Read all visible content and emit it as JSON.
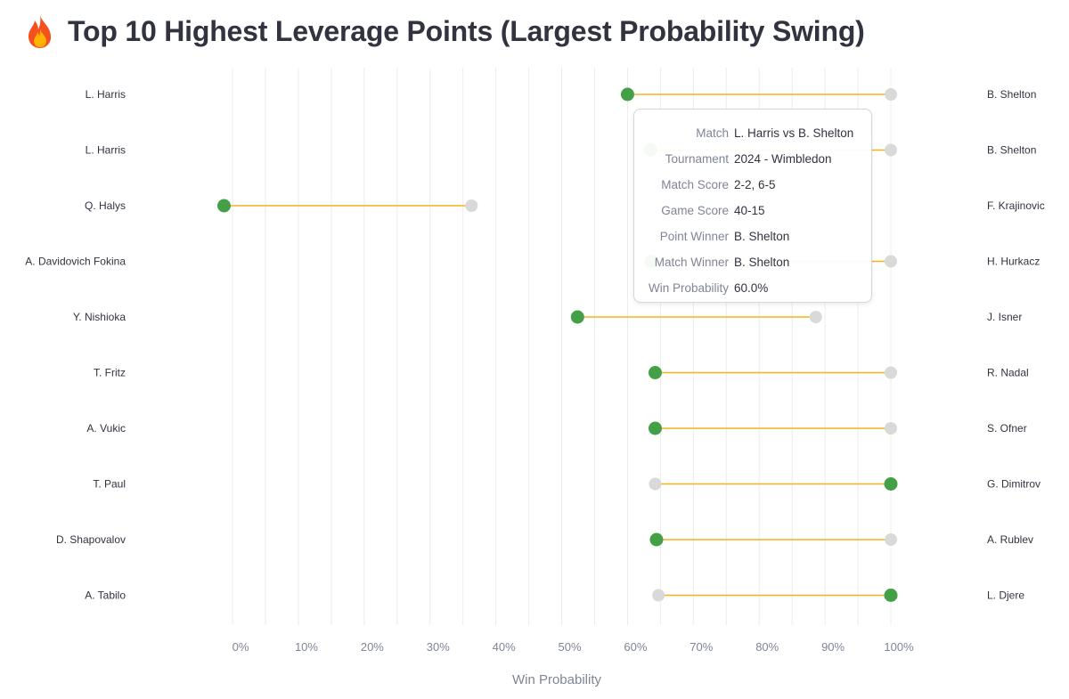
{
  "page": {
    "title": "Top 10 Highest Leverage Points (Largest Probability Swing)",
    "icon": "fire-icon"
  },
  "chart_data": {
    "type": "dumbbell",
    "title": "Top 10 Highest Leverage Points (Largest Probability Swing)",
    "xlabel": "Win Probability",
    "ylabel": "",
    "xlim": [
      -0.015,
      1.0
    ],
    "x_ticks": [
      0,
      0.1,
      0.2,
      0.3,
      0.4,
      0.5,
      0.6,
      0.7,
      0.8,
      0.9,
      1.0
    ],
    "x_tick_labels": [
      "0%",
      "10%",
      "20%",
      "30%",
      "40%",
      "50%",
      "60%",
      "70%",
      "80%",
      "90%",
      "100%"
    ],
    "grid": true,
    "colors": {
      "winner": "#43a047",
      "other": "#d9d9d9",
      "connector": "#f5b31b"
    },
    "rows": [
      {
        "left": "L. Harris",
        "right": "B. Shelton",
        "winner_prob": 0.6,
        "other_prob": 1.0
      },
      {
        "left": "L. Harris",
        "right": "B. Shelton",
        "winner_prob": 0.635,
        "other_prob": 1.0
      },
      {
        "left": "Q. Halys",
        "right": "F. Krajinovic",
        "winner_prob": -0.013,
        "other_prob": 0.363
      },
      {
        "left": "A. Davidovich Fokina",
        "right": "H. Hurkacz",
        "winner_prob": 0.636,
        "other_prob": 1.0
      },
      {
        "left": "Y. Nishioka",
        "right": "J. Isner",
        "winner_prob": 0.524,
        "other_prob": 0.886
      },
      {
        "left": "T. Fritz",
        "right": "R. Nadal",
        "winner_prob": 0.642,
        "other_prob": 1.0
      },
      {
        "left": "A. Vukic",
        "right": "S. Ofner",
        "winner_prob": 0.642,
        "other_prob": 1.0
      },
      {
        "left": "T. Paul",
        "right": "G. Dimitrov",
        "winner_prob": 1.0,
        "other_prob": 0.642
      },
      {
        "left": "D. Shapovalov",
        "right": "A. Rublev",
        "winner_prob": 0.644,
        "other_prob": 1.0
      },
      {
        "left": "A. Tabilo",
        "right": "L. Djere",
        "winner_prob": 1.0,
        "other_prob": 0.647
      }
    ]
  },
  "tooltip": {
    "rows": [
      {
        "key": "Match",
        "value": "L. Harris vs B. Shelton"
      },
      {
        "key": "Tournament",
        "value": "2024 - Wimbledon"
      },
      {
        "key": "Match Score",
        "value": "2-2, 6-5"
      },
      {
        "key": "Game Score",
        "value": "40-15"
      },
      {
        "key": "Point Winner",
        "value": "B. Shelton"
      },
      {
        "key": "Match Winner",
        "value": "B. Shelton"
      },
      {
        "key": "Win Probability",
        "value": "60.0%"
      }
    ]
  }
}
